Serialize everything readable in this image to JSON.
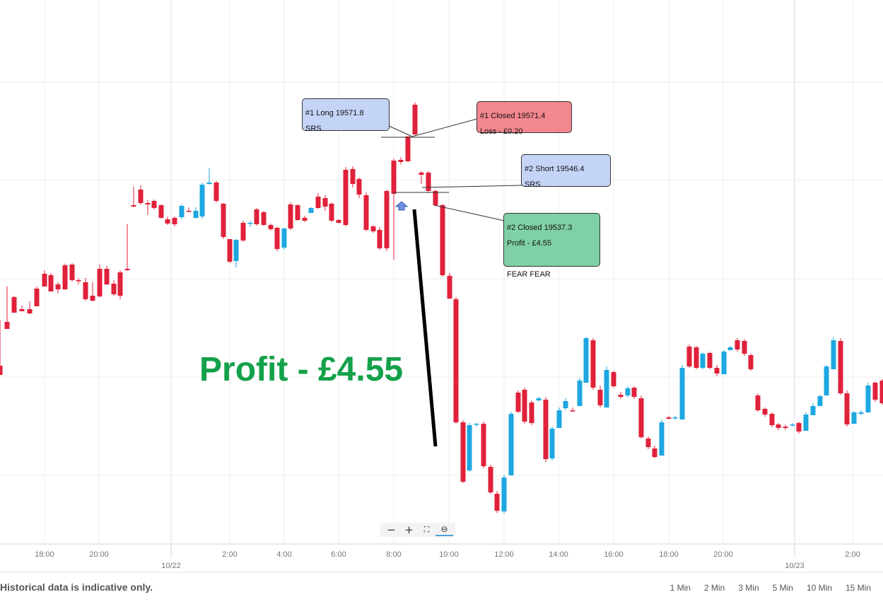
{
  "chart_data": {
    "type": "candlestick",
    "x_tick_labels": [
      "18:00",
      "20:00",
      "2:00",
      "4:00",
      "6:00",
      "8:00",
      "10:00",
      "12:00",
      "14:00",
      "16:00",
      "18:00",
      "20:00",
      "2:00"
    ],
    "date_labels": [
      "10/22",
      "10/23"
    ],
    "grid": true,
    "colors": {
      "up": "#1ea7e0",
      "down": "#e0213a"
    },
    "candles": [
      [
        0,
        517,
        530,
        455,
        517,
        452
      ],
      [
        10,
        455,
        465,
        420,
        455,
        405
      ],
      [
        20,
        420,
        442,
        422,
        441,
        418
      ],
      [
        31,
        437,
        440,
        437,
        438,
        432
      ],
      [
        42,
        437,
        443,
        429,
        444,
        426
      ],
      [
        52,
        408,
        433,
        433,
        408,
        405
      ],
      [
        63,
        387,
        405,
        405,
        389,
        382
      ],
      [
        72,
        389,
        412,
        411,
        412,
        386
      ],
      [
        82,
        402,
        409,
        404,
        415,
        399
      ],
      [
        92,
        375,
        409,
        375,
        410,
        373
      ],
      [
        102,
        374,
        396,
        395,
        398,
        372
      ],
      [
        111,
        396,
        397,
        398,
        402,
        393
      ],
      [
        121,
        399,
        423,
        398,
        425,
        393
      ],
      [
        131,
        418,
        425,
        419,
        426,
        399
      ],
      [
        141,
        380,
        419,
        380,
        420,
        374
      ],
      [
        151,
        380,
        402,
        380,
        403,
        376
      ],
      [
        161,
        401,
        416,
        415,
        418,
        396
      ],
      [
        170,
        385,
        418,
        384,
        423,
        382
      ],
      [
        180,
        380,
        382,
        325,
        383,
        317
      ],
      [
        189,
        290,
        292,
        268,
        293,
        264
      ],
      [
        199,
        268,
        287,
        268,
        289,
        262
      ],
      [
        209,
        287,
        289,
        286,
        304,
        283
      ],
      [
        218,
        284,
        294,
        283,
        296,
        282
      ],
      [
        228,
        290,
        308,
        292,
        309,
        289
      ],
      [
        237,
        310,
        316,
        311,
        318,
        306
      ],
      [
        247,
        308,
        317,
        309,
        320,
        306
      ],
      [
        257,
        307,
        291,
        292,
        310,
        289
      ],
      [
        267,
        298,
        299,
        295,
        300,
        293
      ],
      [
        277,
        308,
        298,
        297,
        309,
        293
      ],
      [
        286,
        306,
        261,
        262,
        309,
        258
      ],
      [
        296,
        260,
        258,
        240,
        261,
        238
      ],
      [
        306,
        258,
        284,
        261,
        286,
        256
      ],
      [
        316,
        288,
        335,
        290,
        338,
        287
      ],
      [
        325,
        338,
        370,
        340,
        372,
        338
      ],
      [
        334,
        369,
        339,
        340,
        378,
        338
      ],
      [
        344,
        315,
        340,
        316,
        342,
        312
      ],
      [
        354,
        316,
        315,
        317,
        321,
        312
      ],
      [
        363,
        296,
        317,
        298,
        319,
        294
      ],
      [
        373,
        300,
        318,
        301,
        319,
        298
      ],
      [
        383,
        318,
        324,
        319,
        326,
        316
      ],
      [
        392,
        322,
        352,
        323,
        355,
        320
      ],
      [
        402,
        350,
        323,
        351,
        353,
        322
      ],
      [
        411,
        289,
        323,
        291,
        325,
        286
      ],
      [
        421,
        290,
        311,
        291,
        312,
        289
      ],
      [
        431,
        308,
        312,
        309,
        314,
        305
      ],
      [
        440,
        301,
        294,
        296,
        298,
        293
      ],
      [
        450,
        278,
        294,
        280,
        295,
        273
      ],
      [
        460,
        280,
        292,
        279,
        298,
        276
      ],
      [
        469,
        288,
        312,
        289,
        314,
        286
      ],
      [
        479,
        311,
        315,
        312,
        316,
        310
      ],
      [
        489,
        240,
        318,
        240,
        320,
        236
      ],
      [
        499,
        239,
        260,
        240,
        265,
        235
      ],
      [
        508,
        253,
        275,
        254,
        280,
        251
      ],
      [
        518,
        276,
        325,
        278,
        327,
        272
      ],
      [
        528,
        320,
        327,
        321,
        329,
        318
      ],
      [
        537,
        325,
        351,
        324,
        353,
        321
      ],
      [
        547,
        270,
        351,
        270,
        355,
        268
      ],
      [
        557,
        227,
        274,
        228,
        367,
        224
      ],
      [
        567,
        226,
        229,
        229,
        232,
        222
      ],
      [
        577,
        193,
        228,
        195,
        229,
        192
      ],
      [
        587,
        148,
        190,
        148,
        191,
        145
      ],
      [
        596,
        244,
        247,
        245,
        260,
        242
      ],
      [
        606,
        244,
        270,
        245,
        273,
        242
      ],
      [
        616,
        270,
        290,
        269,
        292,
        268
      ],
      [
        626,
        290,
        389,
        290,
        391,
        288
      ],
      [
        636,
        390,
        422,
        390,
        423,
        386
      ],
      [
        645,
        423,
        597,
        423,
        599,
        420
      ],
      [
        655,
        597,
        681,
        597,
        683,
        594
      ],
      [
        664,
        665,
        601,
        665,
        667,
        598
      ],
      [
        674,
        600,
        599,
        601,
        603,
        598
      ],
      [
        684,
        599,
        659,
        600,
        662,
        596
      ],
      [
        694,
        660,
        696,
        661,
        698,
        657
      ],
      [
        703,
        698,
        722,
        699,
        725,
        694
      ],
      [
        713,
        723,
        675,
        724,
        726,
        671
      ],
      [
        723,
        672,
        585,
        672,
        588,
        582
      ],
      [
        733,
        555,
        582,
        556,
        584,
        552
      ],
      [
        742,
        551,
        596,
        553,
        599,
        548
      ],
      [
        752,
        569,
        598,
        571,
        601,
        566
      ],
      [
        762,
        566,
        563,
        565,
        567,
        561
      ],
      [
        772,
        565,
        649,
        566,
        653,
        561
      ],
      [
        781,
        648,
        606,
        648,
        651,
        603
      ],
      [
        791,
        605,
        580,
        606,
        582,
        576
      ],
      [
        800,
        577,
        567,
        578,
        580,
        563
      ],
      [
        810,
        580,
        580,
        581,
        582,
        576
      ],
      [
        820,
        574,
        538,
        576,
        540,
        534
      ],
      [
        829,
        541,
        478,
        540,
        482,
        476
      ],
      [
        839,
        481,
        548,
        483,
        551,
        478
      ],
      [
        849,
        551,
        573,
        550,
        576,
        545
      ],
      [
        858,
        576,
        523,
        574,
        525,
        518
      ],
      [
        868,
        526,
        546,
        528,
        548,
        524
      ],
      [
        878,
        558,
        561,
        559,
        564,
        554
      ],
      [
        888,
        559,
        549,
        549,
        562,
        546
      ],
      [
        897,
        548,
        561,
        549,
        564,
        546
      ],
      [
        907,
        563,
        618,
        565,
        620,
        559
      ],
      [
        917,
        620,
        632,
        621,
        635,
        617
      ],
      [
        926,
        634,
        646,
        635,
        648,
        630
      ],
      [
        936,
        644,
        597,
        645,
        599,
        593
      ],
      [
        946,
        590,
        592,
        589,
        593,
        588
      ],
      [
        955,
        591,
        590,
        591,
        593,
        588
      ],
      [
        965,
        593,
        520,
        593,
        522,
        516
      ],
      [
        975,
        490,
        518,
        490,
        520,
        487
      ],
      [
        985,
        491,
        520,
        490,
        522,
        489
      ],
      [
        994,
        520,
        500,
        518,
        522,
        498
      ],
      [
        1004,
        499,
        520,
        499,
        522,
        497
      ],
      [
        1014,
        520,
        528,
        521,
        532,
        516
      ],
      [
        1024,
        529,
        497,
        529,
        498,
        495
      ],
      [
        1033,
        495,
        491,
        497,
        493,
        489
      ],
      [
        1043,
        481,
        494,
        482,
        497,
        478
      ],
      [
        1053,
        482,
        500,
        481,
        503,
        479
      ],
      [
        1062,
        502,
        522,
        501,
        524,
        500
      ],
      [
        1072,
        559,
        580,
        558,
        582,
        556
      ],
      [
        1082,
        578,
        586,
        579,
        589,
        576
      ],
      [
        1092,
        585,
        601,
        586,
        604,
        583
      ],
      [
        1101,
        600,
        605,
        601,
        608,
        598
      ],
      [
        1111,
        603,
        605,
        604,
        608,
        600
      ],
      [
        1121,
        601,
        600,
        602,
        603,
        598
      ],
      [
        1130,
        598,
        610,
        599,
        613,
        596
      ],
      [
        1140,
        609,
        586,
        610,
        589,
        583
      ],
      [
        1150,
        587,
        574,
        588,
        577,
        570
      ],
      [
        1160,
        574,
        560,
        575,
        563,
        558
      ],
      [
        1169,
        559,
        518,
        561,
        521,
        516
      ],
      [
        1179,
        522,
        481,
        524,
        484,
        477
      ],
      [
        1189,
        482,
        556,
        481,
        558,
        478
      ],
      [
        1198,
        556,
        600,
        555,
        603,
        552
      ],
      [
        1208,
        599,
        583,
        600,
        586,
        581
      ],
      [
        1218,
        585,
        583,
        584,
        587,
        580
      ],
      [
        1228,
        583,
        545,
        585,
        548,
        541
      ],
      [
        1238,
        541,
        565,
        540,
        568,
        539
      ],
      [
        1248,
        538,
        570,
        537,
        572,
        536
      ]
    ],
    "annotations": [
      {
        "lines": [
          "#1 Long 19571.8",
          "SRS"
        ],
        "color": "#c4d4f7"
      },
      {
        "lines": [
          "#1 Closed 19571.4",
          "Loss  - £0.20"
        ],
        "color": "#f2878e"
      },
      {
        "lines": [
          "#2 Short 19546.4",
          "SRS"
        ],
        "color": "#c4d4f7"
      },
      {
        "lines": [
          "#2 Closed 19537.3",
          "Profit - £4.55",
          "",
          "FEAR FEAR"
        ],
        "color": "#7fd0a5"
      }
    ],
    "big_label": "Profit - £4.55"
  },
  "footer": {
    "note": "Historical data is indicative only.",
    "timeframes": [
      "1 Min",
      "2 Min",
      "3 Min",
      "5 Min",
      "10 Min",
      "15 Min"
    ]
  },
  "zoom": {
    "minus": "−",
    "plus": "+",
    "fit": "⛶",
    "magnify": "⊖"
  }
}
